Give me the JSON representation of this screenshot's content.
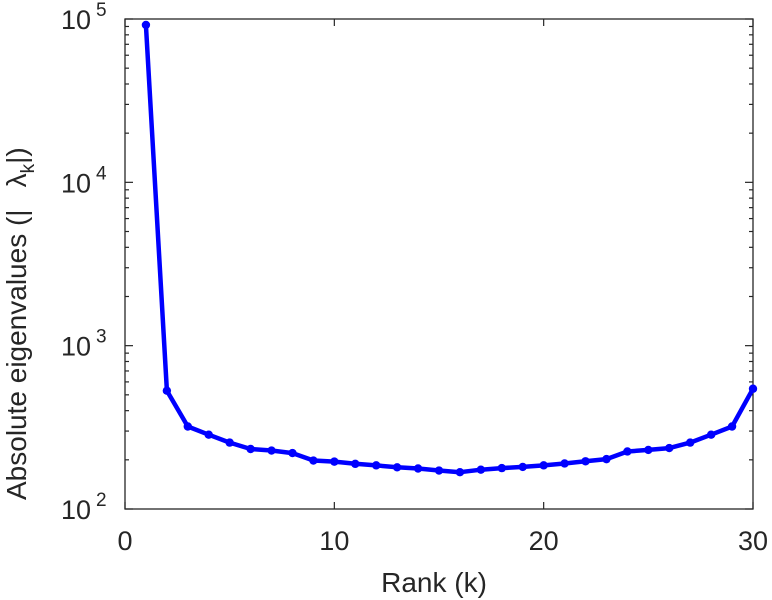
{
  "chart_data": {
    "type": "line",
    "xlabel": "Rank (k)",
    "ylabel": {
      "main": "Absolute eigenvalues (|",
      "symbol": "λ",
      "subscript": "k",
      "close": "|)"
    },
    "xlim": [
      0,
      30
    ],
    "ylim": [
      100,
      100000
    ],
    "yscale": "log",
    "grid": false,
    "x_ticks": [
      {
        "value": 0,
        "label": "0"
      },
      {
        "value": 10,
        "label": "10"
      },
      {
        "value": 20,
        "label": "20"
      },
      {
        "value": 30,
        "label": "30"
      }
    ],
    "y_ticks": [
      {
        "value": 100,
        "base": "10",
        "exp": "2"
      },
      {
        "value": 1000,
        "base": "10",
        "exp": "3"
      },
      {
        "value": 10000,
        "base": "10",
        "exp": "4"
      },
      {
        "value": 100000,
        "base": "10",
        "exp": "5"
      }
    ],
    "series": [
      {
        "color": "#0000ff",
        "x": [
          1,
          2,
          3,
          4,
          5,
          6,
          7,
          8,
          9,
          10,
          11,
          12,
          13,
          14,
          15,
          16,
          17,
          18,
          19,
          20,
          21,
          22,
          23,
          24,
          25,
          26,
          27,
          28,
          29,
          30
        ],
        "y": [
          92000,
          530,
          320,
          285,
          255,
          233,
          228,
          220,
          198,
          195,
          189,
          185,
          180,
          177,
          172,
          168,
          174,
          178,
          181,
          185,
          190,
          196,
          202,
          225,
          230,
          236,
          255,
          285,
          320,
          545
        ]
      }
    ]
  }
}
